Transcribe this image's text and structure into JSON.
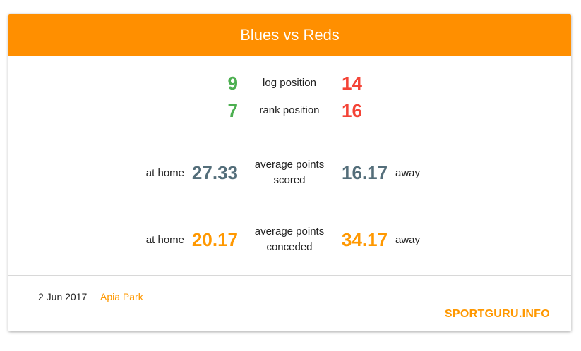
{
  "header": {
    "title": "Blues vs Reds"
  },
  "stats": {
    "log": {
      "left": "9",
      "label": "log position",
      "right": "14"
    },
    "rank": {
      "left": "7",
      "label": "rank position",
      "right": "16"
    },
    "scored": {
      "left_side": "at home",
      "left": "27.33",
      "label_line1": "average points",
      "label_line2": "scored",
      "right": "16.17",
      "right_side": "away"
    },
    "conceded": {
      "left_side": "at home",
      "left": "20.17",
      "label_line1": "average points",
      "label_line2": "conceded",
      "right": "34.17",
      "right_side": "away"
    }
  },
  "footer": {
    "date": "2 Jun 2017",
    "venue": "Apia Park",
    "brand": "SPORTGURU.INFO"
  },
  "colors": {
    "header": "#ff8f00",
    "good": "#4caf50",
    "bad": "#f44336",
    "scored": "#546e7a",
    "conceded": "#ff9800"
  }
}
